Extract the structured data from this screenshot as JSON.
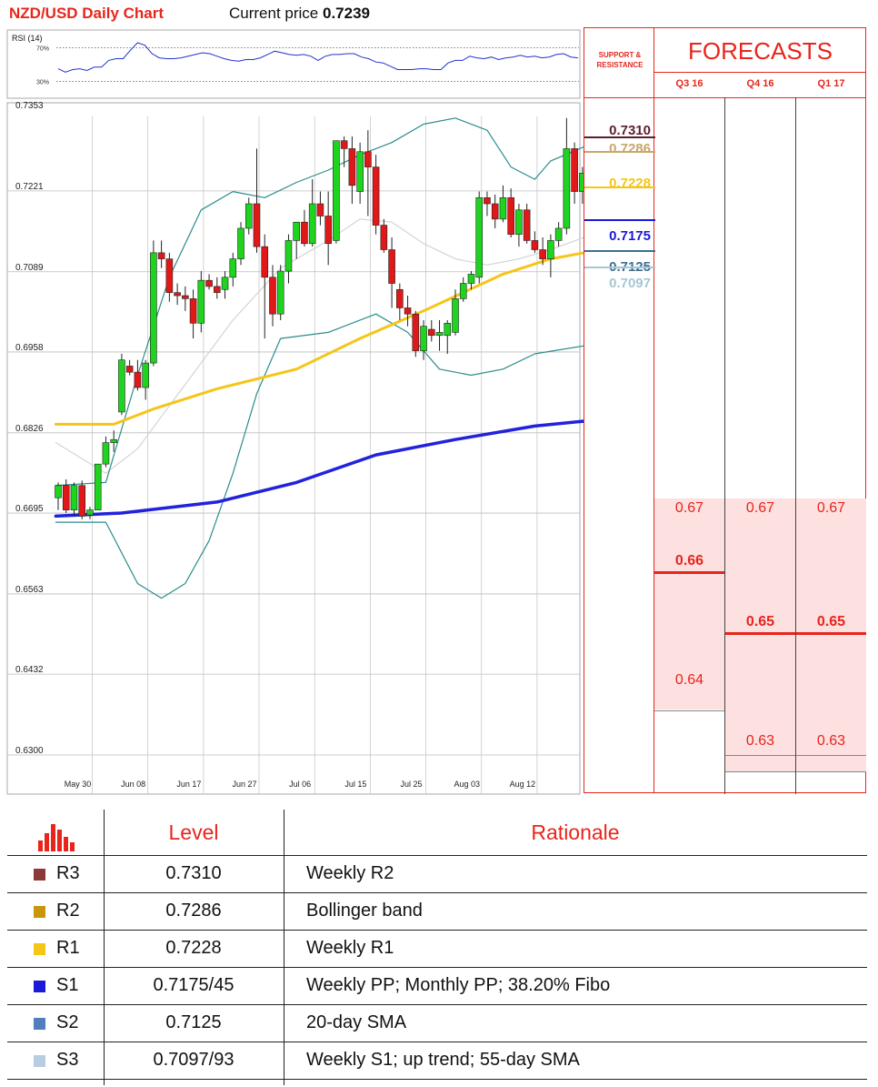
{
  "header": {
    "title": "NZD/USD Daily Chart",
    "price_label": "Current price",
    "price_value": "0.7239"
  },
  "chart_data": [
    {
      "type": "line",
      "title": "RSI (14)",
      "ylim": [
        10,
        90
      ],
      "reference_lines": [
        {
          "label": "70%",
          "value": 70
        },
        {
          "label": "30%",
          "value": 30
        }
      ],
      "series": [
        {
          "name": "RSI (14)",
          "color": "#2233cc",
          "values": [
            45,
            41,
            44,
            45,
            43,
            47,
            47,
            55,
            57,
            57,
            67,
            76,
            73,
            63,
            58,
            57,
            57,
            58,
            60,
            62,
            64,
            63,
            60,
            57,
            55,
            54,
            56,
            56,
            58,
            62,
            66,
            64,
            62,
            61,
            62,
            60,
            55,
            60,
            62,
            62,
            63,
            63,
            59,
            57,
            53,
            52,
            48,
            44,
            44,
            44,
            45,
            45,
            44,
            44,
            52,
            55,
            55,
            60,
            58,
            57,
            59,
            56,
            58,
            59,
            61,
            59,
            60,
            58,
            59,
            62,
            63,
            59,
            58
          ]
        }
      ]
    },
    {
      "type": "candlestick",
      "ylim": [
        0.63,
        0.7353
      ],
      "y_ticks": [
        "0.7353",
        "0.7221",
        "0.7089",
        "0.6958",
        "0.6826",
        "0.6695",
        "0.6563",
        "0.6432",
        "0.6300"
      ],
      "x_ticks": [
        {
          "label": "May 30",
          "index": 2
        },
        {
          "label": "Jun 08",
          "index": 9
        },
        {
          "label": "Jun 17",
          "index": 16
        },
        {
          "label": "Jun 27",
          "index": 23
        },
        {
          "label": "Jul 06",
          "index": 30
        },
        {
          "label": "Jul 15",
          "index": 37
        },
        {
          "label": "Jul 25",
          "index": 44
        },
        {
          "label": "Aug 03",
          "index": 51
        },
        {
          "label": "Aug 12",
          "index": 58
        }
      ],
      "candles": [
        {
          "o": 0.672,
          "h": 0.6745,
          "l": 0.67,
          "c": 0.674
        },
        {
          "o": 0.674,
          "h": 0.675,
          "l": 0.6695,
          "c": 0.67
        },
        {
          "o": 0.67,
          "h": 0.6745,
          "l": 0.669,
          "c": 0.674
        },
        {
          "o": 0.674,
          "h": 0.6748,
          "l": 0.6685,
          "c": 0.669
        },
        {
          "o": 0.6692,
          "h": 0.6705,
          "l": 0.6685,
          "c": 0.67
        },
        {
          "o": 0.67,
          "h": 0.6775,
          "l": 0.67,
          "c": 0.6775
        },
        {
          "o": 0.6775,
          "h": 0.682,
          "l": 0.677,
          "c": 0.681
        },
        {
          "o": 0.681,
          "h": 0.683,
          "l": 0.6795,
          "c": 0.6815
        },
        {
          "o": 0.686,
          "h": 0.6955,
          "l": 0.6855,
          "c": 0.6945
        },
        {
          "o": 0.6935,
          "h": 0.6945,
          "l": 0.692,
          "c": 0.6925
        },
        {
          "o": 0.6925,
          "h": 0.6945,
          "l": 0.6895,
          "c": 0.69
        },
        {
          "o": 0.69,
          "h": 0.6945,
          "l": 0.688,
          "c": 0.694
        },
        {
          "o": 0.694,
          "h": 0.714,
          "l": 0.6935,
          "c": 0.712
        },
        {
          "o": 0.712,
          "h": 0.714,
          "l": 0.7095,
          "c": 0.711
        },
        {
          "o": 0.711,
          "h": 0.712,
          "l": 0.704,
          "c": 0.7055
        },
        {
          "o": 0.7055,
          "h": 0.707,
          "l": 0.7035,
          "c": 0.705
        },
        {
          "o": 0.705,
          "h": 0.7065,
          "l": 0.7025,
          "c": 0.7045
        },
        {
          "o": 0.7045,
          "h": 0.706,
          "l": 0.698,
          "c": 0.7005
        },
        {
          "o": 0.7005,
          "h": 0.709,
          "l": 0.699,
          "c": 0.7075
        },
        {
          "o": 0.7075,
          "h": 0.7085,
          "l": 0.706,
          "c": 0.7065
        },
        {
          "o": 0.7065,
          "h": 0.708,
          "l": 0.7045,
          "c": 0.7055
        },
        {
          "o": 0.706,
          "h": 0.709,
          "l": 0.7045,
          "c": 0.708
        },
        {
          "o": 0.708,
          "h": 0.712,
          "l": 0.7065,
          "c": 0.711
        },
        {
          "o": 0.711,
          "h": 0.717,
          "l": 0.71,
          "c": 0.716
        },
        {
          "o": 0.716,
          "h": 0.721,
          "l": 0.715,
          "c": 0.72
        },
        {
          "o": 0.72,
          "h": 0.729,
          "l": 0.712,
          "c": 0.713
        },
        {
          "o": 0.713,
          "h": 0.715,
          "l": 0.698,
          "c": 0.708
        },
        {
          "o": 0.708,
          "h": 0.71,
          "l": 0.7,
          "c": 0.702
        },
        {
          "o": 0.702,
          "h": 0.71,
          "l": 0.701,
          "c": 0.709
        },
        {
          "o": 0.709,
          "h": 0.715,
          "l": 0.707,
          "c": 0.714
        },
        {
          "o": 0.714,
          "h": 0.717,
          "l": 0.711,
          "c": 0.717
        },
        {
          "o": 0.717,
          "h": 0.719,
          "l": 0.713,
          "c": 0.7135
        },
        {
          "o": 0.7135,
          "h": 0.724,
          "l": 0.713,
          "c": 0.72
        },
        {
          "o": 0.72,
          "h": 0.722,
          "l": 0.7165,
          "c": 0.718
        },
        {
          "o": 0.718,
          "h": 0.722,
          "l": 0.71,
          "c": 0.7135
        },
        {
          "o": 0.714,
          "h": 0.7303,
          "l": 0.7135,
          "c": 0.7303
        },
        {
          "o": 0.7303,
          "h": 0.731,
          "l": 0.726,
          "c": 0.729
        },
        {
          "o": 0.729,
          "h": 0.731,
          "l": 0.72,
          "c": 0.723
        },
        {
          "o": 0.722,
          "h": 0.73,
          "l": 0.72,
          "c": 0.7285
        },
        {
          "o": 0.7285,
          "h": 0.732,
          "l": 0.718,
          "c": 0.726
        },
        {
          "o": 0.726,
          "h": 0.728,
          "l": 0.715,
          "c": 0.7165
        },
        {
          "o": 0.7165,
          "h": 0.7175,
          "l": 0.712,
          "c": 0.7125
        },
        {
          "o": 0.7125,
          "h": 0.7145,
          "l": 0.703,
          "c": 0.707
        },
        {
          "o": 0.706,
          "h": 0.707,
          "l": 0.701,
          "c": 0.703
        },
        {
          "o": 0.703,
          "h": 0.705,
          "l": 0.7,
          "c": 0.702
        },
        {
          "o": 0.702,
          "h": 0.7025,
          "l": 0.695,
          "c": 0.696
        },
        {
          "o": 0.696,
          "h": 0.701,
          "l": 0.6945,
          "c": 0.7
        },
        {
          "o": 0.6995,
          "h": 0.701,
          "l": 0.6975,
          "c": 0.6985
        },
        {
          "o": 0.6985,
          "h": 0.701,
          "l": 0.696,
          "c": 0.699
        },
        {
          "o": 0.6985,
          "h": 0.701,
          "l": 0.6955,
          "c": 0.7005
        },
        {
          "o": 0.699,
          "h": 0.706,
          "l": 0.6985,
          "c": 0.7045
        },
        {
          "o": 0.7045,
          "h": 0.708,
          "l": 0.704,
          "c": 0.707
        },
        {
          "o": 0.707,
          "h": 0.709,
          "l": 0.706,
          "c": 0.7085
        },
        {
          "o": 0.708,
          "h": 0.722,
          "l": 0.707,
          "c": 0.721
        },
        {
          "o": 0.721,
          "h": 0.722,
          "l": 0.718,
          "c": 0.72
        },
        {
          "o": 0.72,
          "h": 0.7215,
          "l": 0.716,
          "c": 0.7175
        },
        {
          "o": 0.7175,
          "h": 0.723,
          "l": 0.717,
          "c": 0.721
        },
        {
          "o": 0.721,
          "h": 0.7225,
          "l": 0.7145,
          "c": 0.715
        },
        {
          "o": 0.715,
          "h": 0.72,
          "l": 0.713,
          "c": 0.719
        },
        {
          "o": 0.719,
          "h": 0.72,
          "l": 0.7135,
          "c": 0.714
        },
        {
          "o": 0.714,
          "h": 0.7155,
          "l": 0.712,
          "c": 0.7125
        },
        {
          "o": 0.7125,
          "h": 0.7145,
          "l": 0.71,
          "c": 0.711
        },
        {
          "o": 0.711,
          "h": 0.715,
          "l": 0.708,
          "c": 0.714
        },
        {
          "o": 0.714,
          "h": 0.717,
          "l": 0.713,
          "c": 0.716
        },
        {
          "o": 0.716,
          "h": 0.734,
          "l": 0.715,
          "c": 0.729
        },
        {
          "o": 0.729,
          "h": 0.73,
          "l": 0.72,
          "c": 0.722
        },
        {
          "o": 0.722,
          "h": 0.726,
          "l": 0.72,
          "c": 0.725
        }
      ],
      "series": [
        {
          "name": "sma-200",
          "color": "#2222dd",
          "width": 3.5,
          "points": [
            [
              -0.3,
              0.669
            ],
            [
              8,
              0.6695
            ],
            [
              20,
              0.6713
            ],
            [
              30,
              0.6745
            ],
            [
              40,
              0.679
            ],
            [
              50,
              0.6815
            ],
            [
              60,
              0.6837
            ],
            [
              66.2,
              0.6845
            ]
          ]
        },
        {
          "name": "sma-55",
          "color": "#f5c518",
          "width": 3,
          "points": [
            [
              -0.3,
              0.684
            ],
            [
              7,
              0.684
            ],
            [
              12,
              0.6865
            ],
            [
              20,
              0.6898
            ],
            [
              30,
              0.693
            ],
            [
              38,
              0.698
            ],
            [
              46,
              0.7025
            ],
            [
              56,
              0.7085
            ],
            [
              62,
              0.711
            ],
            [
              66.2,
              0.712
            ]
          ]
        },
        {
          "name": "sma-20",
          "color": "#d4d4d4",
          "width": 1.2,
          "points": [
            [
              -0.3,
              0.681
            ],
            [
              6,
              0.676
            ],
            [
              10,
              0.68
            ],
            [
              16,
              0.6905
            ],
            [
              22,
              0.701
            ],
            [
              28,
              0.7095
            ],
            [
              34,
              0.714
            ],
            [
              38,
              0.7175
            ],
            [
              42,
              0.717
            ],
            [
              46,
              0.7135
            ],
            [
              50,
              0.711
            ],
            [
              54,
              0.71
            ],
            [
              58,
              0.711
            ],
            [
              62,
              0.7125
            ],
            [
              66.2,
              0.7145
            ]
          ]
        },
        {
          "name": "bollinger-upper",
          "color": "#2a8c8c",
          "width": 1.2,
          "points": [
            [
              -0.3,
              0.674
            ],
            [
              6,
              0.6745
            ],
            [
              10,
              0.692
            ],
            [
              14,
              0.708
            ],
            [
              18,
              0.719
            ],
            [
              22,
              0.722
            ],
            [
              26,
              0.721
            ],
            [
              30,
              0.7235
            ],
            [
              34,
              0.7255
            ],
            [
              38,
              0.728
            ],
            [
              42,
              0.73
            ],
            [
              46,
              0.733
            ],
            [
              50,
              0.734
            ],
            [
              54,
              0.732
            ],
            [
              57,
              0.726
            ],
            [
              60,
              0.724
            ],
            [
              62,
              0.727
            ],
            [
              66.2,
              0.7293
            ]
          ]
        },
        {
          "name": "bollinger-lower",
          "color": "#2a8c8c",
          "width": 1.2,
          "points": [
            [
              -0.3,
              0.668
            ],
            [
              6,
              0.668
            ],
            [
              10,
              0.658
            ],
            [
              13,
              0.6556
            ],
            [
              16,
              0.658
            ],
            [
              19,
              0.665
            ],
            [
              22,
              0.676
            ],
            [
              25,
              0.689
            ],
            [
              28,
              0.698
            ],
            [
              34,
              0.699
            ],
            [
              40,
              0.702
            ],
            [
              44,
              0.699
            ],
            [
              48,
              0.693
            ],
            [
              52,
              0.692
            ],
            [
              56,
              0.693
            ],
            [
              60,
              0.6955
            ],
            [
              66.2,
              0.6968
            ]
          ]
        }
      ]
    }
  ],
  "levels_panel": {
    "title_line1": "SUPPORT &",
    "title_line2": "RESISTANCE",
    "items": [
      {
        "label": "0.7310",
        "value": 0.731,
        "color": "#5a1f2e"
      },
      {
        "label": "0.7286",
        "value": 0.7286,
        "color": "#c9a76a"
      },
      {
        "label": "0.7228",
        "value": 0.7228,
        "color": "#f5c518"
      },
      {
        "label": "0.7175",
        "value": 0.7175,
        "color": "#1a1ad8"
      },
      {
        "label": "0.7125",
        "value": 0.7125,
        "color": "#3d6f8f"
      },
      {
        "label": "0.7097",
        "value": 0.7097,
        "color": "#a8c6d4"
      }
    ]
  },
  "forecasts": {
    "title": "FORECASTS",
    "quarters": [
      {
        "label": "Q3 16",
        "values": [
          {
            "text": "0.67",
            "value": 0.67,
            "bold": false
          },
          {
            "text": "0.66",
            "value": 0.66,
            "bold": true
          },
          {
            "text": "0.64",
            "value": 0.64,
            "bold": false
          }
        ]
      },
      {
        "label": "Q4 16",
        "values": [
          {
            "text": "0.67",
            "value": 0.67,
            "bold": false
          },
          {
            "text": "0.65",
            "value": 0.65,
            "bold": true
          },
          {
            "text": "0.63",
            "value": 0.63,
            "bold": false
          }
        ]
      },
      {
        "label": "Q1 17",
        "values": [
          {
            "text": "0.67",
            "value": 0.67,
            "bold": false
          },
          {
            "text": "0.65",
            "value": 0.65,
            "bold": true
          },
          {
            "text": "0.63",
            "value": 0.63,
            "bold": false
          }
        ]
      }
    ]
  },
  "table": {
    "headers": {
      "level": "Level",
      "rationale": "Rationale"
    },
    "icon": "bar-chart-icon",
    "rows": [
      {
        "name": "R3",
        "level": "0.7310",
        "rationale": "Weekly R2",
        "color": "#8b3a3a"
      },
      {
        "name": "R2",
        "level": "0.7286",
        "rationale": "Bollinger band",
        "color": "#c9960c"
      },
      {
        "name": "R1",
        "level": "0.7228",
        "rationale": "Weekly R1",
        "color": "#f5c518"
      },
      {
        "name": "S1",
        "level": "0.7175/45",
        "rationale": "Weekly PP; Monthly PP; 38.20% Fibo",
        "color": "#1a1ad8"
      },
      {
        "name": "S2",
        "level": "0.7125",
        "rationale": "20-day SMA",
        "color": "#4f7fbf"
      },
      {
        "name": "S3",
        "level": "0.7097/93",
        "rationale": "Weekly S1; up trend; 55-day SMA",
        "color": "#b8cde4"
      }
    ]
  }
}
